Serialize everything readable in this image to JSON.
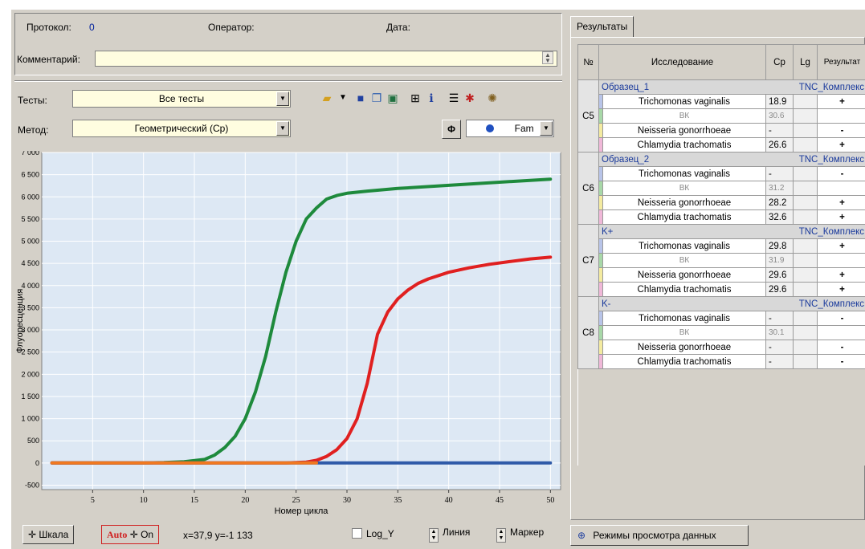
{
  "header": {
    "protocol_label": "Протокол:",
    "protocol_value": "0",
    "operator_label": "Оператор:",
    "date_label": "Дата:",
    "comment_label": "Комментарий:",
    "comment_value": ""
  },
  "controls": {
    "tests_label": "Тесты:",
    "tests_value": "Все тесты",
    "method_label": "Метод:",
    "method_value": "Геометрический (Cp)",
    "channel_value": "Fam",
    "phi_label": "Φ"
  },
  "toolbar_icons": [
    "open-folder-icon",
    "dropdown-arrow-icon",
    "save-icon",
    "copy-icon",
    "edit-icon",
    "grid-icon",
    "info-icon",
    "list-icon",
    "zoom-icon",
    "settings-icon"
  ],
  "chart_data": {
    "type": "line",
    "xlabel": "Номер цикла",
    "ylabel": "Флуоресценция",
    "xlim": [
      0,
      51
    ],
    "ylim": [
      -600,
      7000
    ],
    "x_ticks": [
      5,
      10,
      15,
      20,
      25,
      30,
      35,
      40,
      45,
      50
    ],
    "y_ticks": [
      -500,
      0,
      500,
      1000,
      1500,
      2000,
      2500,
      3000,
      3500,
      4000,
      4500,
      5000,
      5500,
      6000,
      6500,
      7000
    ],
    "y_tick_labels": [
      "-500",
      "0",
      "500",
      "1 000",
      "1 500",
      "2 000",
      "2 500",
      "3 000",
      "3 500",
      "4 000",
      "4 500",
      "5 000",
      "5 500",
      "6 000",
      "6 500",
      "7 000"
    ],
    "grid": true,
    "background": "#dde8f4",
    "series": [
      {
        "color": "#1e8a3c",
        "x": [
          1,
          10,
          12,
          14,
          16,
          17,
          18,
          19,
          20,
          21,
          22,
          23,
          24,
          25,
          26,
          27,
          28,
          29,
          30,
          32,
          35,
          40,
          45,
          50
        ],
        "values": [
          0,
          0,
          10,
          30,
          80,
          180,
          350,
          600,
          1000,
          1600,
          2400,
          3400,
          4300,
          5000,
          5500,
          5750,
          5950,
          6030,
          6080,
          6130,
          6190,
          6260,
          6330,
          6400
        ]
      },
      {
        "color": "#e02020",
        "x": [
          1,
          20,
          24,
          26,
          27,
          28,
          29,
          30,
          31,
          32,
          33,
          34,
          35,
          36,
          37,
          38,
          40,
          42,
          44,
          46,
          48,
          50
        ],
        "values": [
          0,
          0,
          0,
          20,
          60,
          150,
          300,
          550,
          1000,
          1800,
          2900,
          3400,
          3700,
          3900,
          4050,
          4150,
          4300,
          4400,
          4480,
          4540,
          4600,
          4640
        ]
      },
      {
        "color": "#2f5aa8",
        "x": [
          1,
          50
        ],
        "values": [
          0,
          0
        ]
      },
      {
        "color": "#f07820",
        "x": [
          1,
          27
        ],
        "values": [
          0,
          0
        ]
      }
    ]
  },
  "bottom": {
    "scale_button": "Шкала",
    "auto_label": "Auto",
    "on_label": "On",
    "coords": "x=37,9 y=-1 133",
    "logy_label": "Log_Y",
    "line_label": "Линия",
    "marker_label": "Маркер"
  },
  "results": {
    "tab_label": "Результаты",
    "columns": [
      "№",
      "Исследование",
      "Cp",
      "Lg",
      "Результат"
    ],
    "groups": [
      {
        "well": "C5",
        "sample": "Образец_1",
        "kit": "TNC_Комплекс",
        "rows": [
          {
            "name": "Trichomonas vaginalis",
            "cp": "18.9",
            "result": "+",
            "color": "#b8c4e8"
          },
          {
            "name": "ВК",
            "cp": "30.6",
            "result": "",
            "color": "#a8d8a8",
            "bk": true
          },
          {
            "name": "Neisseria gonorrhoeae",
            "cp": "-",
            "result": "-",
            "color": "#f4eba0"
          },
          {
            "name": "Chlamydia trachomatis",
            "cp": "26.6",
            "result": "+",
            "color": "#f0b8d8"
          }
        ]
      },
      {
        "well": "C6",
        "sample": "Образец_2",
        "kit": "TNC_Комплекс",
        "rows": [
          {
            "name": "Trichomonas vaginalis",
            "cp": "-",
            "result": "-",
            "color": "#b8c4e8"
          },
          {
            "name": "ВК",
            "cp": "31.2",
            "result": "",
            "color": "#a8d8a8",
            "bk": true
          },
          {
            "name": "Neisseria gonorrhoeae",
            "cp": "28.2",
            "result": "+",
            "color": "#f4eba0"
          },
          {
            "name": "Chlamydia trachomatis",
            "cp": "32.6",
            "result": "+",
            "color": "#f0b8d8"
          }
        ]
      },
      {
        "well": "C7",
        "sample": "K+",
        "kit": "TNC_Комплекс",
        "rows": [
          {
            "name": "Trichomonas vaginalis",
            "cp": "29.8",
            "result": "+",
            "color": "#b8c4e8"
          },
          {
            "name": "ВК",
            "cp": "31.9",
            "result": "",
            "color": "#a8d8a8",
            "bk": true
          },
          {
            "name": "Neisseria gonorrhoeae",
            "cp": "29.6",
            "result": "+",
            "color": "#f4eba0"
          },
          {
            "name": "Chlamydia trachomatis",
            "cp": "29.6",
            "result": "+",
            "color": "#f0b8d8"
          }
        ]
      },
      {
        "well": "C8",
        "sample": "K-",
        "kit": "TNC_Комплекс",
        "rows": [
          {
            "name": "Trichomonas vaginalis",
            "cp": "-",
            "result": "-",
            "color": "#b8c4e8"
          },
          {
            "name": "ВК",
            "cp": "30.1",
            "result": "",
            "color": "#a8d8a8",
            "bk": true
          },
          {
            "name": "Neisseria gonorrhoeae",
            "cp": "-",
            "result": "-",
            "color": "#f4eba0"
          },
          {
            "name": "Chlamydia trachomatis",
            "cp": "-",
            "result": "-",
            "color": "#f0b8d8"
          }
        ]
      }
    ],
    "view_modes_button": "Режимы просмотра данных"
  }
}
